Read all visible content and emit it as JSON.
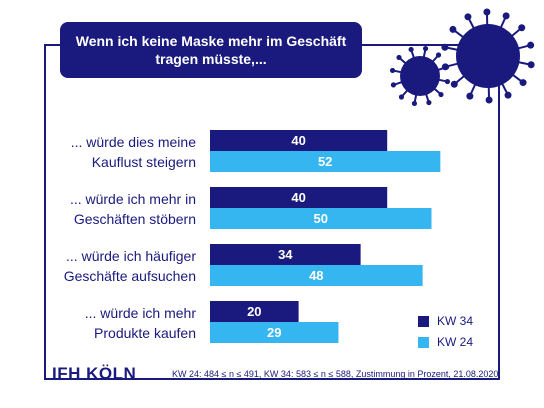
{
  "title_lines": [
    "Wenn ich keine Maske mehr im Geschäft",
    "tragen müsste,..."
  ],
  "chart_data": {
    "type": "bar",
    "orientation": "horizontal",
    "categories": [
      [
        "... würde dies meine",
        "Kauflust steigern"
      ],
      [
        "... würde ich mehr in",
        "Geschäften stöbern"
      ],
      [
        "... würde ich häufiger",
        "Geschäfte aufsuchen"
      ],
      [
        "... würde ich mehr",
        "Produkte kaufen"
      ]
    ],
    "series": [
      {
        "name": "KW 34",
        "values": [
          40,
          40,
          34,
          20
        ],
        "color": "#1a1a7e"
      },
      {
        "name": "KW 24",
        "values": [
          52,
          50,
          48,
          29
        ],
        "color": "#35b6f0"
      }
    ],
    "data_labels": true,
    "legend_position": "bottom-right"
  },
  "footer": {
    "logo": "IFH KÖLN",
    "note": "KW 24: 484 ≤ n ≤ 491, KW 34: 583 ≤ n ≤ 588, Zustimmung in Prozent, 21.08.2020"
  },
  "decor": {
    "primary_color": "#1a1a7e",
    "virus_icon": "coronavirus-icon"
  }
}
